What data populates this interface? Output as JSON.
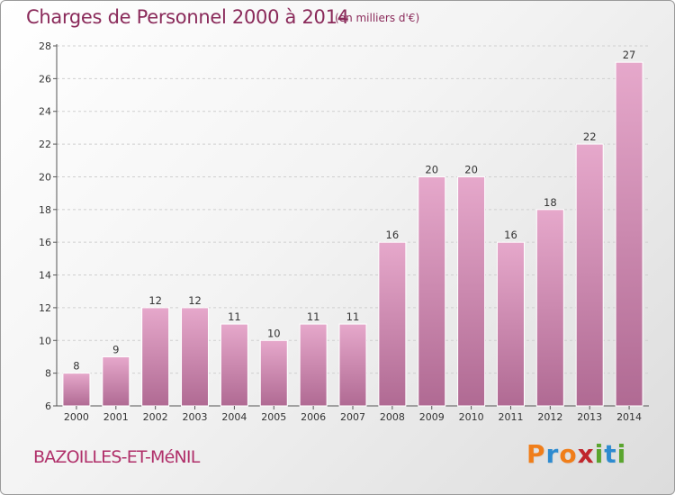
{
  "header": {
    "title": "Charges de Personnel 2000 à 2014",
    "subtitle": "(en milliers d'€)"
  },
  "footer": {
    "commune": "BAZOILLES-ET-MéNIL",
    "brand_letters": [
      {
        "ch": "P",
        "color": "#f07e1a"
      },
      {
        "ch": "r",
        "color": "#2e8bd0"
      },
      {
        "ch": "o",
        "color": "#f07e1a"
      },
      {
        "ch": "x",
        "color": "#c0262c"
      },
      {
        "ch": "i",
        "color": "#5aa52e"
      },
      {
        "ch": "t",
        "color": "#2e8bd0"
      },
      {
        "ch": "i",
        "color": "#5aa52e"
      }
    ]
  },
  "colors": {
    "bar_top": "#e6a8cb",
    "bar_bottom": "#b06a93",
    "grid": "#cfcfcf",
    "axis": "#555555"
  },
  "chart_data": {
    "type": "bar",
    "title": "Charges de Personnel 2000 à 2014",
    "subtitle": "(en milliers d'€)",
    "categories": [
      "2000",
      "2001",
      "2002",
      "2003",
      "2004",
      "2005",
      "2006",
      "2007",
      "2008",
      "2009",
      "2010",
      "2011",
      "2012",
      "2013",
      "2014"
    ],
    "values": [
      8,
      9,
      12,
      12,
      11,
      10,
      11,
      11,
      16,
      20,
      20,
      16,
      18,
      22,
      27
    ],
    "ylim": [
      6,
      28
    ],
    "yticks": [
      6,
      8,
      10,
      12,
      14,
      16,
      18,
      20,
      22,
      24,
      26,
      28
    ],
    "grid": true,
    "data_labels": true
  }
}
